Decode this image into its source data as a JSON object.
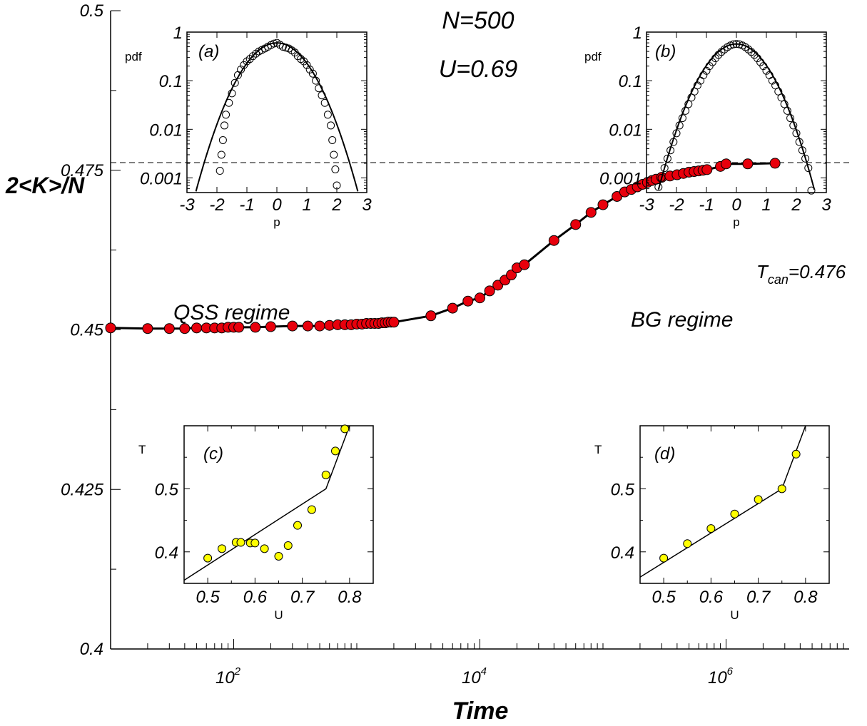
{
  "main_chart": {
    "type": "scatter",
    "title": [
      "N=500",
      "U=0.69"
    ],
    "xlabel": "Time",
    "ylabel": "2<K>/N",
    "x_scale": "log",
    "xlim": [
      10,
      10000000
    ],
    "ylim": [
      0.4,
      0.5
    ],
    "xtick_labels": [
      {
        "value": 100,
        "base": "10",
        "exp": "2"
      },
      {
        "value": 10000,
        "base": "10",
        "exp": "4"
      },
      {
        "value": 1000000,
        "base": "10",
        "exp": "6"
      }
    ],
    "ytick_labels": [
      {
        "value": 0.4,
        "label": "0.4"
      },
      {
        "value": 0.425,
        "label": "0.425"
      },
      {
        "value": 0.45,
        "label": "0.45"
      },
      {
        "value": 0.475,
        "label": "0.475"
      },
      {
        "value": 0.5,
        "label": "0.5"
      }
    ],
    "x": [
      10,
      20,
      30,
      40,
      50,
      60,
      70,
      80,
      90,
      100,
      110,
      150,
      200,
      300,
      400,
      500,
      600,
      700,
      800,
      900,
      1000,
      1100,
      1200,
      1300,
      1400,
      1500,
      1600,
      1700,
      1800,
      1900,
      2000,
      4000,
      6000,
      8000,
      10000,
      12000,
      14000,
      16000,
      18000,
      20000,
      23000,
      40000,
      60000,
      80000,
      100000,
      130000,
      150000,
      170000,
      190000,
      210000,
      230000,
      250000,
      270000,
      300000,
      350000,
      400000,
      450000,
      500000,
      550000,
      600000,
      650000,
      700000,
      900000,
      1000000,
      1500000,
      2500000
    ],
    "y": [
      0.4503,
      0.4502,
      0.4502,
      0.4502,
      0.4503,
      0.4503,
      0.4503,
      0.4503,
      0.4504,
      0.4504,
      0.4504,
      0.4504,
      0.4505,
      0.4506,
      0.4506,
      0.4506,
      0.4507,
      0.4508,
      0.4508,
      0.4508,
      0.4509,
      0.4509,
      0.451,
      0.451,
      0.451,
      0.451,
      0.4511,
      0.4511,
      0.4512,
      0.4512,
      0.4512,
      0.4522,
      0.4534,
      0.4545,
      0.455,
      0.4561,
      0.457,
      0.4578,
      0.4586,
      0.4597,
      0.4602,
      0.464,
      0.4665,
      0.4684,
      0.4696,
      0.4709,
      0.4716,
      0.472,
      0.4724,
      0.4728,
      0.4731,
      0.4734,
      0.4736,
      0.4739,
      0.4741,
      0.4743,
      0.4745,
      0.4747,
      0.4748,
      0.4749,
      0.475,
      0.4751,
      0.4756,
      0.476,
      0.476,
      0.4761
    ],
    "marker_color": "#e8000c",
    "reference_line": {
      "y": 0.4762,
      "label_main": "T",
      "label_sub": "can",
      "label_tail": "=0.476"
    },
    "annotations": [
      "QSS regime",
      "BG regime"
    ]
  },
  "inset_a": {
    "type": "scatter",
    "tag": "(a)",
    "xlabel": "p",
    "ylabel": "pdf",
    "y_scale": "log",
    "xlim": [
      -3,
      3
    ],
    "ylim": [
      0.0005,
      1
    ],
    "xtick_labels": [
      "-3",
      "-2",
      "-1",
      "0",
      "1",
      "2",
      "3"
    ],
    "ytick_labels": [
      {
        "value": 1,
        "label": "1"
      },
      {
        "value": 0.1,
        "label": "0.1"
      },
      {
        "value": 0.01,
        "label": "0.01"
      },
      {
        "value": 0.001,
        "label": "0.001"
      }
    ],
    "x": [
      -1.9,
      -1.85,
      -1.8,
      -1.75,
      -1.7,
      -1.6,
      -1.5,
      -1.4,
      -1.3,
      -1.2,
      -1.1,
      -1.0,
      -0.9,
      -0.8,
      -0.7,
      -0.6,
      -0.5,
      -0.4,
      -0.3,
      -0.2,
      -0.1,
      0.0,
      0.1,
      0.2,
      0.3,
      0.4,
      0.5,
      0.6,
      0.7,
      0.8,
      0.9,
      1.0,
      1.1,
      1.2,
      1.3,
      1.4,
      1.5,
      1.6,
      1.7,
      1.8,
      1.85,
      1.9,
      1.95,
      2.0
    ],
    "y": [
      0.0014,
      0.003,
      0.006,
      0.012,
      0.02,
      0.035,
      0.055,
      0.09,
      0.13,
      0.17,
      0.21,
      0.25,
      0.28,
      0.32,
      0.36,
      0.4,
      0.43,
      0.46,
      0.5,
      0.54,
      0.58,
      0.6,
      0.55,
      0.5,
      0.48,
      0.46,
      0.42,
      0.38,
      0.32,
      0.28,
      0.25,
      0.21,
      0.17,
      0.14,
      0.1,
      0.07,
      0.05,
      0.035,
      0.02,
      0.012,
      0.006,
      0.003,
      0.0015,
      0.0007
    ]
  },
  "inset_b": {
    "type": "scatter",
    "tag": "(b)",
    "xlabel": "p",
    "ylabel": "pdf",
    "y_scale": "log",
    "xlim": [
      -3,
      3
    ],
    "ylim": [
      0.0005,
      1
    ],
    "xtick_labels": [
      "-3",
      "-2",
      "-1",
      "0",
      "1",
      "2",
      "3"
    ],
    "ytick_labels": [
      {
        "value": 1,
        "label": "1"
      },
      {
        "value": 0.1,
        "label": "0.1"
      },
      {
        "value": 0.01,
        "label": "0.01"
      },
      {
        "value": 0.001,
        "label": "0.001"
      }
    ],
    "x": [
      -2.6,
      -2.5,
      -2.4,
      -2.3,
      -2.2,
      -2.1,
      -2.0,
      -1.9,
      -1.8,
      -1.7,
      -1.6,
      -1.5,
      -1.4,
      -1.3,
      -1.2,
      -1.1,
      -1.0,
      -0.9,
      -0.8,
      -0.7,
      -0.6,
      -0.5,
      -0.4,
      -0.3,
      -0.2,
      -0.1,
      0.0,
      0.1,
      0.2,
      0.3,
      0.4,
      0.5,
      0.6,
      0.7,
      0.8,
      0.9,
      1.0,
      1.1,
      1.2,
      1.3,
      1.4,
      1.5,
      1.6,
      1.7,
      1.8,
      1.9,
      2.0,
      2.1,
      2.2,
      2.3,
      2.4,
      2.5
    ],
    "y": [
      0.00065,
      0.001,
      0.0016,
      0.0025,
      0.0037,
      0.0055,
      0.0083,
      0.012,
      0.017,
      0.024,
      0.033,
      0.045,
      0.06,
      0.08,
      0.1,
      0.13,
      0.16,
      0.2,
      0.24,
      0.29,
      0.34,
      0.39,
      0.44,
      0.49,
      0.53,
      0.56,
      0.57,
      0.56,
      0.53,
      0.49,
      0.44,
      0.39,
      0.34,
      0.29,
      0.24,
      0.2,
      0.16,
      0.13,
      0.1,
      0.08,
      0.06,
      0.045,
      0.033,
      0.024,
      0.017,
      0.012,
      0.0083,
      0.0055,
      0.0037,
      0.0025,
      0.0016,
      0.00055
    ]
  },
  "inset_c": {
    "type": "scatter",
    "tag": "(c)",
    "xlabel": "U",
    "ylabel": "T",
    "xlim": [
      0.45,
      0.85
    ],
    "ylim": [
      0.35,
      0.6
    ],
    "xtick_labels": [
      "0.5",
      "0.6",
      "0.7",
      "0.8"
    ],
    "ytick_labels": [
      "0.4",
      "0.5"
    ],
    "marker_color": "#ffff00",
    "x": [
      0.5,
      0.53,
      0.56,
      0.57,
      0.59,
      0.6,
      0.62,
      0.65,
      0.67,
      0.69,
      0.72,
      0.75,
      0.77,
      0.79
    ],
    "y": [
      0.39,
      0.405,
      0.415,
      0.415,
      0.414,
      0.414,
      0.405,
      0.393,
      0.41,
      0.442,
      0.467,
      0.522,
      0.56,
      0.595
    ],
    "line_x": [
      0.45,
      0.75,
      0.8
    ],
    "line_y": [
      0.355,
      0.5,
      0.6
    ]
  },
  "inset_d": {
    "type": "scatter",
    "tag": "(d)",
    "xlabel": "U",
    "ylabel": "T",
    "xlim": [
      0.45,
      0.85
    ],
    "ylim": [
      0.35,
      0.6
    ],
    "xtick_labels": [
      "0.5",
      "0.6",
      "0.7",
      "0.8"
    ],
    "ytick_labels": [
      "0.4",
      "0.5"
    ],
    "marker_color": "#ffff00",
    "x": [
      0.5,
      0.55,
      0.6,
      0.65,
      0.7,
      0.75,
      0.78
    ],
    "y": [
      0.39,
      0.413,
      0.437,
      0.46,
      0.483,
      0.5,
      0.555
    ],
    "line_x": [
      0.45,
      0.75,
      0.8
    ],
    "line_y": [
      0.36,
      0.5,
      0.6
    ]
  }
}
